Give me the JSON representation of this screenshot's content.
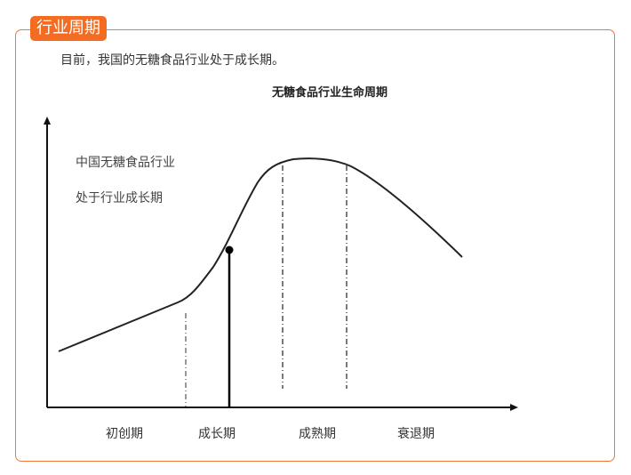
{
  "section": {
    "tag": "行业周期",
    "intro": "目前，我国的无糖食品行业处于成长期。"
  },
  "diagram": {
    "title": "无糖食品行业生命周期",
    "annotation_line1": "中国无糖食品行业",
    "annotation_line2": "处于行业成长期",
    "stages": [
      "初创期",
      "成长期",
      "成熟期",
      "衰退期"
    ],
    "accent_color": "#f36c21"
  }
}
